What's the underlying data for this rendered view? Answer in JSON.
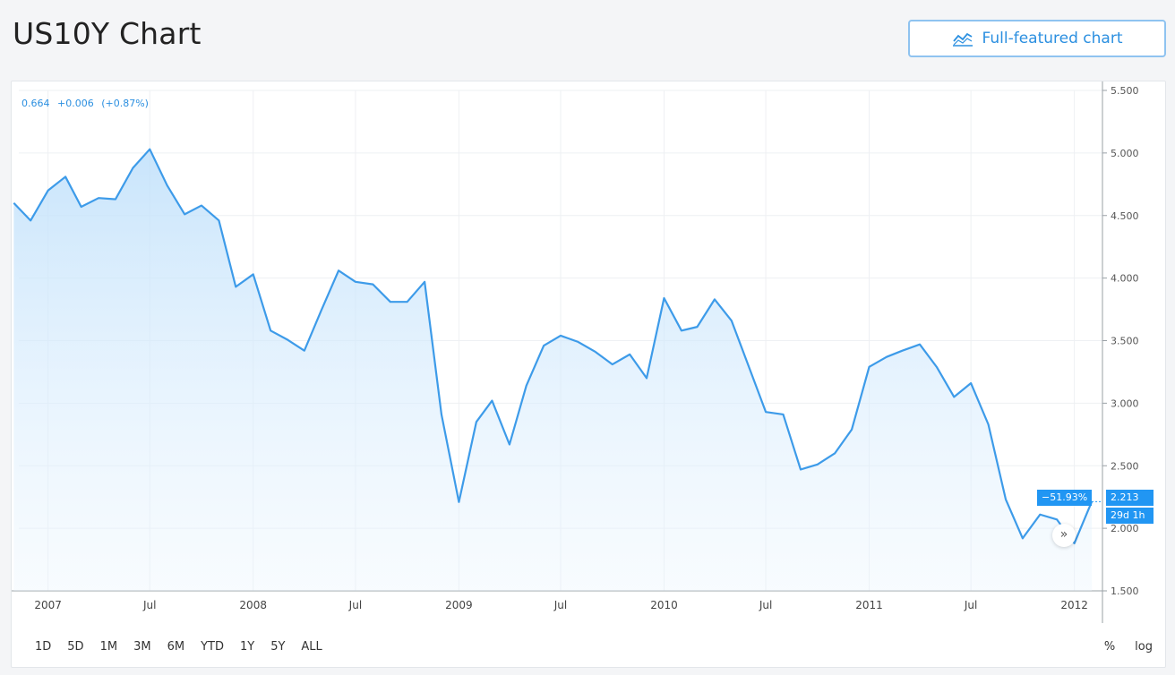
{
  "page": {
    "title": "US10Y Chart",
    "full_chart_label": "Full-featured chart",
    "full_chart_icon": "chart-line-icon"
  },
  "legend": {
    "last": "0.664",
    "change": "+0.006",
    "change_pct": "(+0.87%)"
  },
  "ranges": [
    "1D",
    "5D",
    "1M",
    "3M",
    "6M",
    "YTD",
    "1Y",
    "5Y",
    "ALL"
  ],
  "options": {
    "percent": "%",
    "log": "log"
  },
  "badges": {
    "pct_change": "−51.93%",
    "price": "2.213",
    "countdown": "29d 1h"
  },
  "scroll_icon": "double-chevron-right-icon",
  "colors": {
    "line": "#3d9be9",
    "accent": "#2196f3",
    "grid": "#eef0f3"
  },
  "chart_data": {
    "type": "area",
    "title": "US10Y Chart",
    "xlabel": "",
    "ylabel": "",
    "ylim": [
      1.5,
      5.5
    ],
    "yticks": [
      1.5,
      2.0,
      2.5,
      3.0,
      3.5,
      4.0,
      4.5,
      5.0,
      5.5
    ],
    "ytick_labels": [
      "1.500",
      "2.000",
      "2.500",
      "3.000",
      "3.500",
      "4.000",
      "4.500",
      "5.000",
      "5.500"
    ],
    "xlim": [
      "2006-11-10",
      "2012-02-20"
    ],
    "xticks": [
      {
        "date": "2007-01-01",
        "label": "2007"
      },
      {
        "date": "2007-07-01",
        "label": "Jul"
      },
      {
        "date": "2008-01-01",
        "label": "2008"
      },
      {
        "date": "2008-07-01",
        "label": "Jul"
      },
      {
        "date": "2009-01-01",
        "label": "2009"
      },
      {
        "date": "2009-07-01",
        "label": "Jul"
      },
      {
        "date": "2010-01-01",
        "label": "2010"
      },
      {
        "date": "2010-07-01",
        "label": "Jul"
      },
      {
        "date": "2011-01-01",
        "label": "2011"
      },
      {
        "date": "2011-07-01",
        "label": "Jul"
      },
      {
        "date": "2012-01-01",
        "label": "2012"
      }
    ],
    "grid": true,
    "series": [
      {
        "x": [
          "2006-11-01",
          "2006-12-01",
          "2007-01-01",
          "2007-02-01",
          "2007-03-01",
          "2007-04-01",
          "2007-05-01",
          "2007-06-01",
          "2007-07-01",
          "2007-08-01",
          "2007-09-01",
          "2007-10-01",
          "2007-11-01",
          "2007-12-01",
          "2008-01-01",
          "2008-02-01",
          "2008-03-01",
          "2008-04-01",
          "2008-05-01",
          "2008-06-01",
          "2008-07-01",
          "2008-08-01",
          "2008-09-01",
          "2008-10-01",
          "2008-11-01",
          "2008-12-01",
          "2009-01-01",
          "2009-02-01",
          "2009-03-01",
          "2009-04-01",
          "2009-05-01",
          "2009-06-01",
          "2009-07-01",
          "2009-08-01",
          "2009-09-01",
          "2009-10-01",
          "2009-11-01",
          "2009-12-01",
          "2010-01-01",
          "2010-02-01",
          "2010-03-01",
          "2010-04-01",
          "2010-05-01",
          "2010-06-01",
          "2010-07-01",
          "2010-08-01",
          "2010-09-01",
          "2010-10-01",
          "2010-11-01",
          "2010-12-01",
          "2011-01-01",
          "2011-02-01",
          "2011-03-01",
          "2011-04-01",
          "2011-05-01",
          "2011-06-01",
          "2011-07-01",
          "2011-08-01",
          "2011-09-01",
          "2011-10-01",
          "2011-11-01",
          "2011-12-01",
          "2012-01-01",
          "2012-02-01"
        ],
        "values": [
          4.6,
          4.46,
          4.7,
          4.81,
          4.57,
          4.64,
          4.63,
          4.88,
          5.03,
          4.74,
          4.51,
          4.58,
          4.46,
          3.93,
          4.03,
          3.58,
          3.51,
          3.42,
          3.74,
          4.06,
          3.97,
          3.95,
          3.81,
          3.81,
          3.97,
          2.91,
          2.21,
          2.85,
          3.02,
          2.67,
          3.14,
          3.46,
          3.54,
          3.49,
          3.41,
          3.31,
          3.39,
          3.2,
          3.84,
          3.58,
          3.61,
          3.83,
          3.66,
          3.29,
          2.93,
          2.91,
          2.47,
          2.51,
          2.6,
          2.79,
          3.29,
          3.37,
          3.42,
          3.47,
          3.29,
          3.05,
          3.16,
          2.83,
          2.23,
          1.92,
          2.11,
          2.07,
          1.88,
          2.213
        ]
      }
    ]
  }
}
